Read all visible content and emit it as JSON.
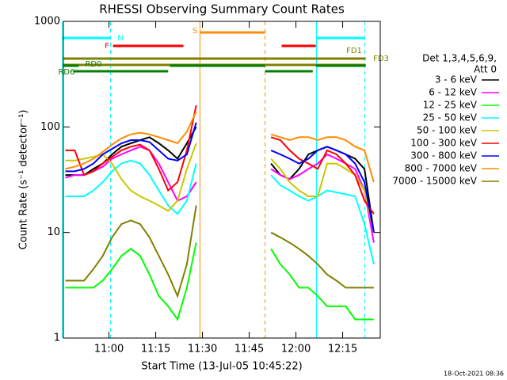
{
  "chart_data": {
    "type": "line",
    "title": "RHESSI Observing Summary Count Rates",
    "xlabel": "Start Time (13-Jul-05 10:45:22)",
    "ylabel": "Count Rate (s⁻¹ detector⁻¹)",
    "footer": "18-Oct-2021 08:36",
    "legend_title": [
      "Det 1,3,4,5,6,9,",
      "Att 0"
    ],
    "legend": "right",
    "log_y": true,
    "xlim": [
      645.37,
      747.06
    ],
    "ylim": [
      1,
      1000
    ],
    "yticks": [
      1,
      10,
      100,
      1000
    ],
    "xticks": [
      {
        "value": 660,
        "label": "11:00"
      },
      {
        "value": 675,
        "label": "11:15"
      },
      {
        "value": 690,
        "label": "11:30"
      },
      {
        "value": 705,
        "label": "11:45"
      },
      {
        "value": 720,
        "label": "12:00"
      },
      {
        "value": 735,
        "label": "12:15"
      }
    ],
    "x": [
      646,
      649,
      652,
      655,
      658,
      661,
      664,
      667,
      670,
      673,
      676,
      679,
      682,
      685,
      688,
      700,
      712,
      715,
      718,
      721,
      724,
      727,
      730,
      733,
      736,
      739,
      742,
      745
    ],
    "series": [
      {
        "name": "3 - 6 keV",
        "color": "#000000",
        "values": [
          35,
          35,
          35,
          40,
          45,
          55,
          65,
          70,
          75,
          80,
          70,
          60,
          50,
          70,
          100,
          null,
          45,
          35,
          32,
          40,
          55,
          60,
          65,
          60,
          55,
          50,
          40,
          10
        ]
      },
      {
        "name": "6 - 12 keV",
        "color": "#ff00ff",
        "values": [
          33,
          35,
          35,
          38,
          42,
          50,
          55,
          60,
          65,
          60,
          45,
          30,
          20,
          22,
          30,
          null,
          40,
          35,
          32,
          35,
          40,
          45,
          55,
          50,
          45,
          40,
          25,
          8
        ]
      },
      {
        "name": "12 - 25 keV",
        "color": "#00ff00",
        "values": [
          3,
          3,
          3,
          3,
          3.5,
          4.5,
          6,
          7,
          6,
          4,
          2.5,
          2,
          1.5,
          3,
          8,
          null,
          7,
          5,
          4,
          3,
          3,
          2.5,
          2,
          2,
          2,
          1.5,
          1.5,
          1.5
        ]
      },
      {
        "name": "25 - 50 keV",
        "color": "#00ffff",
        "values": [
          22,
          22,
          22,
          25,
          30,
          38,
          45,
          48,
          45,
          35,
          25,
          18,
          15,
          20,
          45,
          null,
          35,
          28,
          25,
          22,
          20,
          22,
          25,
          24,
          23,
          22,
          12,
          5
        ]
      },
      {
        "name": "50 - 100 keV",
        "color": "#c8c800",
        "values": [
          48,
          48,
          50,
          52,
          55,
          45,
          32,
          25,
          22,
          20,
          18,
          16,
          20,
          40,
          70,
          null,
          50,
          40,
          30,
          25,
          22,
          22,
          45,
          45,
          40,
          35,
          25,
          10
        ]
      },
      {
        "name": "100 - 300 keV",
        "color": "#ff0000",
        "values": [
          60,
          60,
          35,
          38,
          45,
          52,
          60,
          65,
          68,
          60,
          40,
          25,
          30,
          60,
          160,
          null,
          80,
          75,
          60,
          50,
          45,
          40,
          60,
          55,
          45,
          35,
          20,
          15
        ]
      },
      {
        "name": "300 - 800 keV",
        "color": "#0000ff",
        "values": [
          38,
          38,
          40,
          45,
          55,
          62,
          70,
          75,
          75,
          72,
          60,
          50,
          48,
          55,
          110,
          null,
          60,
          55,
          50,
          45,
          50,
          60,
          65,
          60,
          55,
          45,
          30,
          10
        ]
      },
      {
        "name": "800 - 7000 keV",
        "color": "#ff8c00",
        "values": [
          40,
          42,
          45,
          50,
          58,
          68,
          78,
          85,
          88,
          85,
          80,
          75,
          70,
          90,
          140,
          null,
          85,
          80,
          75,
          80,
          80,
          75,
          80,
          80,
          75,
          65,
          60,
          30
        ]
      },
      {
        "name": "7000 - 15000 keV",
        "color": "#808000",
        "values": [
          3.5,
          3.5,
          3.5,
          4.5,
          6,
          9,
          12,
          13,
          12,
          9,
          6,
          4,
          2.5,
          5,
          18,
          null,
          10,
          9,
          8,
          7,
          6,
          5,
          4,
          3.5,
          3,
          3,
          3,
          3
        ]
      }
    ],
    "flags": [
      {
        "label": "N",
        "color": "#00ffff",
        "vlines": true,
        "ranges": [
          [
            645,
            660.5
          ],
          [
            726.6,
            742.1
          ]
        ]
      },
      {
        "label": "F",
        "color": "#ff0000",
        "vlines": false,
        "ranges": [
          [
            661.3,
            683.9
          ],
          [
            715.4,
            726.4
          ]
        ]
      },
      {
        "label": "S",
        "color": "#ff8c00",
        "vlines": true,
        "ranges": [
          [
            689.2,
            710.1
          ]
        ]
      },
      {
        "label": "FD1",
        "color": "#808000",
        "vlines": false,
        "ranges": [
          [
            645.4,
            742.4
          ]
        ]
      },
      {
        "label": "FD3",
        "color": "#808000",
        "vlines": false,
        "ranges": [
          [
            645.4,
            742.4
          ]
        ]
      },
      {
        "label": "RD0",
        "color": "#008000",
        "vlines": false,
        "ranges": [
          [
            645.4,
            650.3
          ],
          [
            679.6,
            710.1
          ],
          [
            726.4,
            742.4
          ]
        ]
      },
      {
        "label": "RD6",
        "color": "#008000",
        "vlines": false,
        "ranges": [
          [
            648.6,
            679.0
          ],
          [
            710.1,
            725.4
          ]
        ]
      }
    ]
  }
}
